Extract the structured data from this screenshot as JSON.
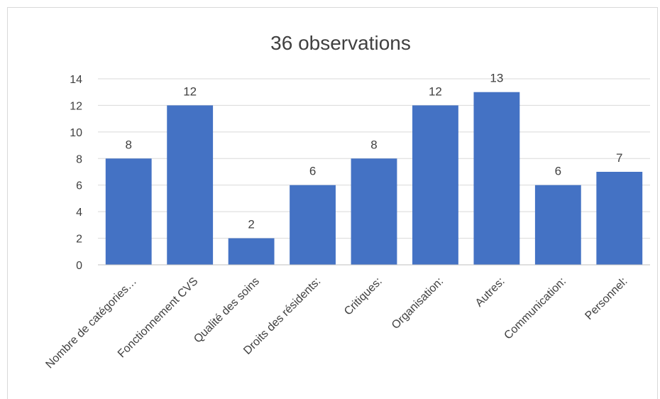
{
  "chart_data": {
    "type": "bar",
    "title": "36  observations",
    "categories": [
      "Nombre de catégories…",
      "Fonctionnement CVS",
      "Qualité des soins",
      "Droits des résidents:",
      "Critiques:",
      "Organisation:",
      "Autres:",
      "Communication:",
      "Personnel:"
    ],
    "values": [
      8,
      12,
      2,
      6,
      8,
      12,
      13,
      6,
      7
    ],
    "ylim": [
      0,
      14
    ],
    "yticks": [
      0,
      2,
      4,
      6,
      8,
      10,
      12,
      14
    ],
    "grid": true,
    "legend": "none",
    "bar_color": "#4472c4",
    "xlabel": "",
    "ylabel": ""
  }
}
